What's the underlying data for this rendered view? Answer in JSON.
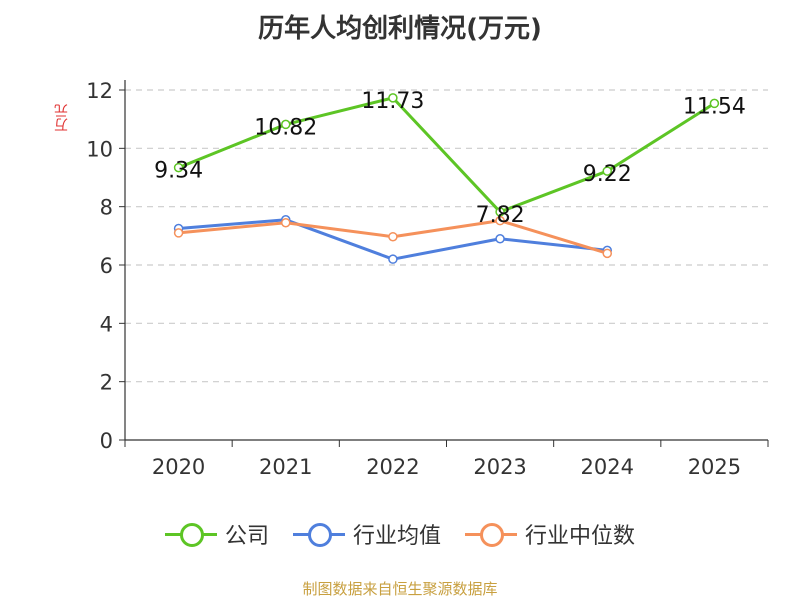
{
  "chart_data": {
    "type": "line",
    "title": "历年人均创利情况(万元)",
    "ylabel": "万元",
    "categories": [
      "2020",
      "2021",
      "2022",
      "2023",
      "2024",
      "2025"
    ],
    "ylim": [
      0,
      12
    ],
    "yticks": [
      0,
      2,
      4,
      6,
      8,
      10,
      12
    ],
    "grid": true,
    "legend_position": "bottom",
    "series": [
      {
        "name": "公司",
        "color": "#5dc525",
        "values": [
          9.34,
          10.82,
          11.73,
          7.82,
          9.22,
          11.54
        ],
        "labels": [
          "9.34",
          "10.82",
          "11.73",
          "7.82",
          "9.22",
          "11.54"
        ]
      },
      {
        "name": "行业均值",
        "color": "#4f7fdd",
        "values": [
          7.25,
          7.55,
          6.2,
          6.9,
          6.5,
          null
        ]
      },
      {
        "name": "行业中位数",
        "color": "#f5915b",
        "values": [
          7.1,
          7.45,
          6.97,
          7.52,
          6.4,
          null
        ]
      }
    ]
  },
  "source": "制图数据来自恒生聚源数据库"
}
